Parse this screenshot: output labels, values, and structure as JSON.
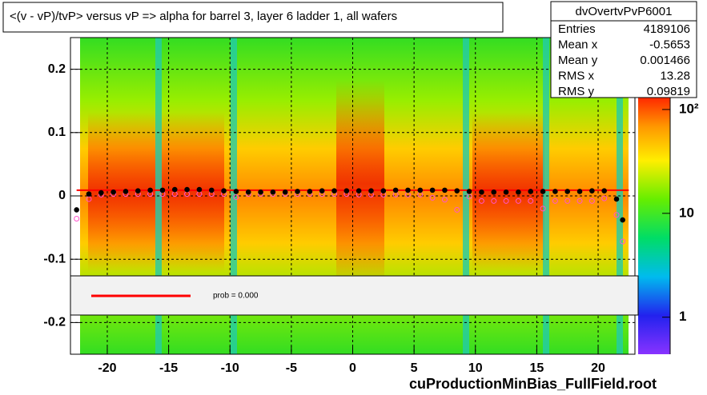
{
  "chart_data": {
    "type": "profile",
    "title": "<(v - vP)/tvP> versus   vP => alpha for barrel 3, layer 6 ladder 1, all wafers",
    "footer": "cuProductionMinBias_FullField.root",
    "xlim": [
      -23,
      23
    ],
    "ylim": [
      -0.25,
      0.25
    ],
    "xticks": [
      -20,
      -15,
      -10,
      -5,
      0,
      5,
      10,
      15,
      20
    ],
    "yticks": [
      -0.2,
      -0.1,
      0,
      0.1,
      0.2
    ],
    "grid": true,
    "zlim": [
      0.44,
      135
    ],
    "zlog": true,
    "zticks": [
      1,
      10,
      {
        "value": 100,
        "label": "10²"
      }
    ],
    "stats": {
      "title": "dvOvertvPvP6001",
      "rows": [
        [
          "Entries",
          4189106
        ],
        [
          "Mean x",
          -0.5653
        ],
        [
          "Mean y",
          0.001466
        ],
        [
          "RMS x",
          13.28
        ],
        [
          "RMS y",
          0.09819
        ]
      ]
    },
    "fit": {
      "label": "prob = 0.000",
      "color": "#ff0000",
      "x": [
        -22.5,
        22.5
      ],
      "values": [
        0.009,
        0.009
      ]
    },
    "x": [
      -22.5,
      -21.5,
      -20.5,
      -19.5,
      -18.5,
      -17.5,
      -16.5,
      -15.5,
      -14.5,
      -13.5,
      -12.5,
      -11.5,
      -10.5,
      -9.5,
      -8.5,
      -7.5,
      -6.5,
      -5.5,
      -4.5,
      -3.5,
      -2.5,
      -1.5,
      -0.5,
      0.5,
      1.5,
      2.5,
      3.5,
      4.5,
      5.5,
      6.5,
      7.5,
      8.5,
      9.5,
      10.5,
      11.5,
      12.5,
      13.5,
      14.5,
      15.5,
      16.5,
      17.5,
      18.5,
      19.5,
      20.5,
      21.5,
      22
    ],
    "series": [
      {
        "color": "#ff55cc",
        "marker": "open",
        "values": [
          -0.036,
          -0.005,
          0.002,
          0.003,
          0.003,
          0.003,
          0.003,
          0.003,
          0.003,
          0.003,
          0.003,
          0.003,
          0.003,
          -0.002,
          0.003,
          0.003,
          0.003,
          0.003,
          0.003,
          0.003,
          0.003,
          0.003,
          0.003,
          0.002,
          0.002,
          0.002,
          0.002,
          0.002,
          0.002,
          -0.003,
          -0.006,
          -0.022,
          -0.001,
          -0.008,
          -0.008,
          -0.008,
          -0.008,
          -0.008,
          -0.02,
          -0.008,
          -0.008,
          -0.008,
          -0.008,
          -0.004,
          -0.03,
          -0.072
        ]
      },
      {
        "color": "#000000",
        "marker": "filled",
        "values": [
          -0.022,
          0.003,
          0.005,
          0.006,
          0.007,
          0.008,
          0.009,
          0.009,
          0.01,
          0.01,
          0.01,
          0.009,
          0.008,
          0.007,
          0.006,
          0.006,
          0.006,
          0.006,
          0.007,
          0.007,
          0.008,
          0.008,
          0.008,
          0.008,
          0.008,
          0.008,
          0.009,
          0.009,
          0.009,
          0.009,
          0.009,
          0.008,
          0.007,
          0.006,
          0.006,
          0.006,
          0.006,
          0.007,
          0.007,
          0.007,
          0.007,
          0.007,
          0.008,
          0.008,
          -0.005,
          -0.038
        ]
      }
    ]
  }
}
